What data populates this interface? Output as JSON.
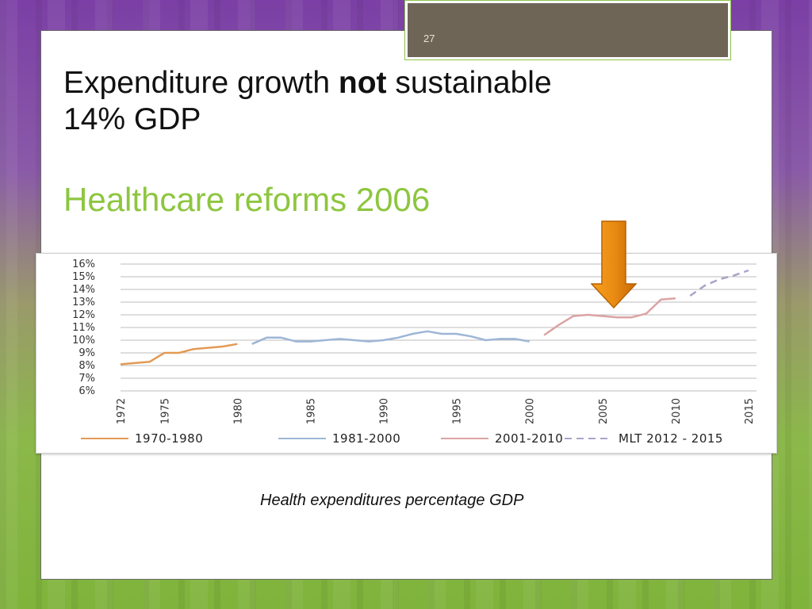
{
  "slide": {
    "number": "27",
    "title_part1": "Expenditure growth ",
    "title_bold": "not",
    "title_part2": " sustainable",
    "title_line2": "14% GDP",
    "subtitle": "Healthcare reforms 2006",
    "caption": "Health expenditures percentage GDP"
  },
  "colors": {
    "series_1970_1980": "#e39a55",
    "series_1981_2000": "#9db6d6",
    "series_2001_2010": "#dca3a3",
    "series_mlt": "#aaa3c9",
    "subtitle": "#8dc63f",
    "arrow": "#e98b12"
  },
  "chart_data": {
    "type": "line",
    "ylim": [
      0.06,
      0.16
    ],
    "y_ticks": [
      "6%",
      "7%",
      "8%",
      "9%",
      "10%",
      "11%",
      "12%",
      "13%",
      "14%",
      "15%",
      "16%"
    ],
    "x_ticks": [
      "1972",
      "1975",
      "1980",
      "1985",
      "1990",
      "1995",
      "2000",
      "2005",
      "2010",
      "2015"
    ],
    "xlim": [
      1972,
      2015
    ],
    "grid": true,
    "legend_position": "bottom",
    "annotation": "arrow at 2006",
    "series": [
      {
        "name": "1970-1980",
        "style": "solid",
        "x": [
          1972,
          1973,
          1974,
          1975,
          1976,
          1977,
          1978,
          1979,
          1980
        ],
        "y": [
          0.081,
          0.082,
          0.083,
          0.09,
          0.09,
          0.093,
          0.094,
          0.095,
          0.097
        ]
      },
      {
        "name": "1981-2000",
        "style": "solid",
        "x": [
          1981,
          1982,
          1983,
          1984,
          1985,
          1986,
          1987,
          1988,
          1989,
          1990,
          1991,
          1992,
          1993,
          1994,
          1995,
          1996,
          1997,
          1998,
          1999,
          2000
        ],
        "y": [
          0.097,
          0.102,
          0.102,
          0.099,
          0.099,
          0.1,
          0.101,
          0.1,
          0.099,
          0.1,
          0.102,
          0.105,
          0.107,
          0.105,
          0.105,
          0.103,
          0.1,
          0.101,
          0.101,
          0.099
        ]
      },
      {
        "name": "2001-2010",
        "style": "solid",
        "x": [
          2001,
          2002,
          2003,
          2004,
          2005,
          2006,
          2007,
          2008,
          2009,
          2010
        ],
        "y": [
          0.104,
          0.112,
          0.119,
          0.12,
          0.119,
          0.118,
          0.118,
          0.121,
          0.132,
          0.133
        ]
      },
      {
        "name": "MLT 2012 - 2015",
        "style": "dashed",
        "x": [
          2011,
          2012,
          2013,
          2014,
          2015
        ],
        "y": [
          0.135,
          0.143,
          0.148,
          0.151,
          0.155
        ]
      }
    ]
  }
}
